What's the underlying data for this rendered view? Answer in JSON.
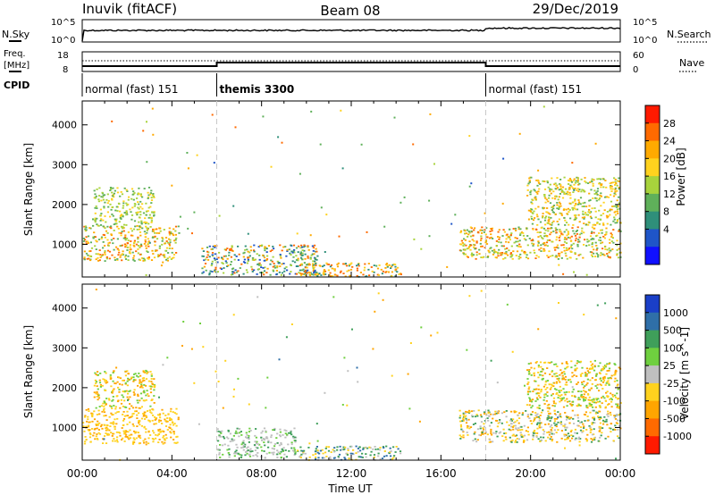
{
  "header": {
    "station": "Inuvik (fitACF)",
    "beam": "Beam 08",
    "date": "29/Dec/2019"
  },
  "sky_panel": {
    "left_label": "N.Sky",
    "right_label": "N.Search",
    "left_ticks": [
      "10^5",
      "10^0"
    ],
    "right_ticks": [
      "10^5",
      "10^0"
    ]
  },
  "freq_panel": {
    "left_label_1": "Freq.",
    "left_label_2": "[MHz]",
    "right_label": "Nave",
    "left_ticks": [
      "18",
      "8"
    ],
    "right_ticks": [
      "60",
      "0"
    ]
  },
  "cpid_panel": {
    "label": "CPID",
    "segments": [
      {
        "name": "normal (fast) 151",
        "start_hour": 0,
        "end_hour": 6
      },
      {
        "name": "themis 3300",
        "start_hour": 6,
        "end_hour": 18
      },
      {
        "name": "normal (fast) 151",
        "start_hour": 18,
        "end_hour": 24
      }
    ]
  },
  "chart_data": [
    {
      "type": "heatmap",
      "name": "power",
      "ylabel": "Slant Range [km]",
      "colorbar_label": "Power [dB]",
      "colorbar_ticks": [
        "28",
        "24",
        "20",
        "16",
        "12",
        "8",
        "4"
      ],
      "colorbar_colors": [
        "#ff1a00",
        "#ff6a00",
        "#ffaa00",
        "#ffd21e",
        "#a8d33c",
        "#5fb05a",
        "#2f8f7a",
        "#1f55c8",
        "#1010ff"
      ],
      "yticks": [
        "1000",
        "2000",
        "3000",
        "4000"
      ],
      "ylim": [
        180,
        4600
      ],
      "x_range_hours": [
        0,
        24
      ],
      "scatter_regions": [
        {
          "t0": 0.0,
          "t1": 4.3,
          "r0": 600,
          "r1": 1500,
          "values_db": [
            28,
            24,
            20,
            16,
            12
          ]
        },
        {
          "t0": 0.5,
          "t1": 3.2,
          "r0": 1500,
          "r1": 2450,
          "values_db": [
            20,
            16,
            12
          ]
        },
        {
          "t0": 5.3,
          "t1": 10.5,
          "r0": 250,
          "r1": 1000,
          "values_db": [
            28,
            24,
            16,
            12,
            8,
            4
          ]
        },
        {
          "t0": 9.5,
          "t1": 14.2,
          "r0": 200,
          "r1": 550,
          "values_db": [
            28,
            24,
            20,
            8
          ]
        },
        {
          "t0": 16.8,
          "t1": 24.0,
          "r0": 650,
          "r1": 1450,
          "values_db": [
            28,
            24,
            20,
            16,
            12
          ]
        },
        {
          "t0": 19.8,
          "t1": 24.0,
          "r0": 1500,
          "r1": 2700,
          "values_db": [
            24,
            20,
            16,
            12
          ]
        }
      ]
    },
    {
      "type": "heatmap",
      "name": "velocity",
      "ylabel": "Slant Range [km]",
      "colorbar_label": "Velocity [m s^-1]",
      "colorbar_ticks": [
        "1000",
        "500",
        "100",
        "25",
        "-25",
        "-100",
        "-500",
        "-1000"
      ],
      "colorbar_colors": [
        "#1a3fc8",
        "#2f6fa8",
        "#3f9f5a",
        "#6fcf3f",
        "#bfbfbf",
        "#ffd21e",
        "#ffa500",
        "#ff6a00",
        "#ff1a00"
      ],
      "yticks": [
        "1000",
        "2000",
        "3000",
        "4000"
      ],
      "ylim": [
        180,
        4600
      ],
      "x_range_hours": [
        0,
        24
      ],
      "xticks": [
        "00:00",
        "04:00",
        "08:00",
        "12:00",
        "16:00",
        "20:00",
        "00:00"
      ],
      "xlabel": "Time UT",
      "scatter_regions": [
        {
          "t0": 0.0,
          "t1": 4.3,
          "r0": 600,
          "r1": 1500,
          "values": [
            -100,
            -500,
            -100
          ]
        },
        {
          "t0": 0.5,
          "t1": 3.2,
          "r0": 1500,
          "r1": 2450,
          "values": [
            -100,
            -500,
            25
          ]
        },
        {
          "t0": 6.0,
          "t1": 9.5,
          "r0": 250,
          "r1": 1000,
          "values": [
            0,
            0,
            25,
            100
          ]
        },
        {
          "t0": 9.5,
          "t1": 14.2,
          "r0": 200,
          "r1": 550,
          "values": [
            100,
            500,
            -25,
            -100
          ]
        },
        {
          "t0": 16.8,
          "t1": 24.0,
          "r0": 650,
          "r1": 1450,
          "values": [
            -100,
            -500,
            100,
            -25
          ]
        },
        {
          "t0": 19.8,
          "t1": 24.0,
          "r0": 1500,
          "r1": 2700,
          "values": [
            -500,
            -100,
            25
          ]
        }
      ]
    }
  ]
}
